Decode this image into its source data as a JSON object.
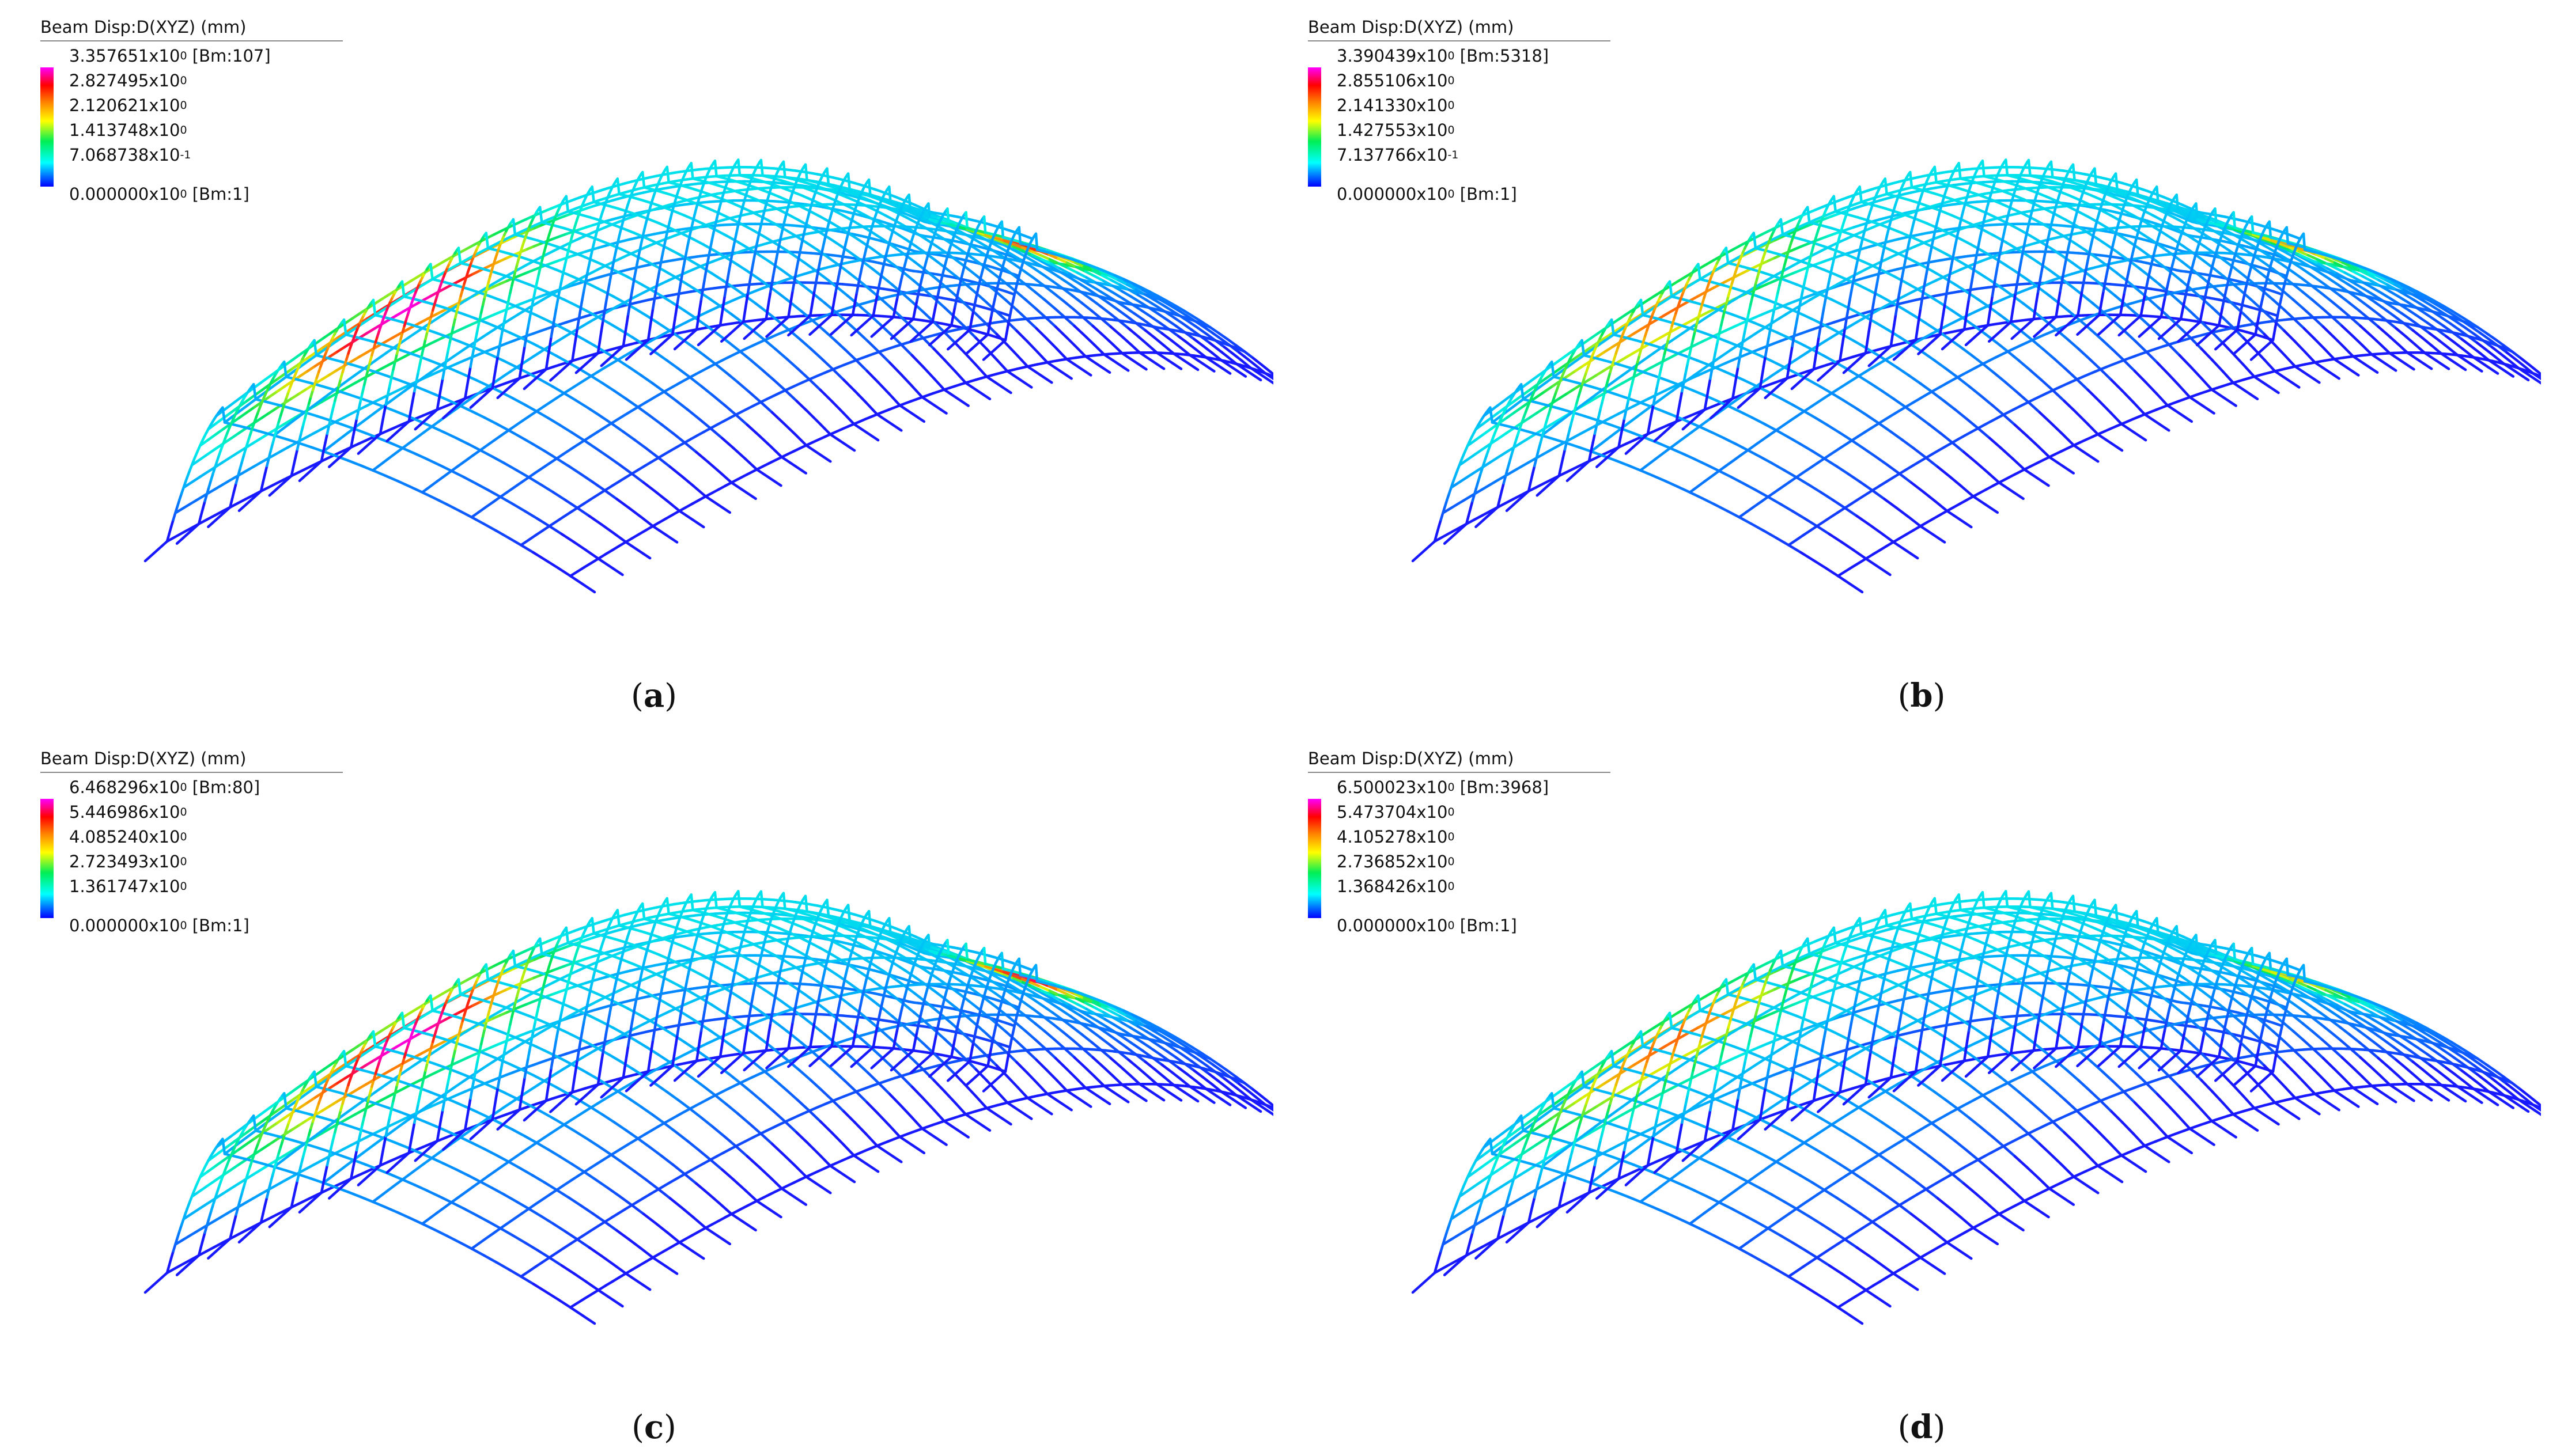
{
  "panels": [
    {
      "id": "a",
      "legend_title": "Beam Disp:D(XYZ)  (mm)",
      "legend": [
        {
          "mantissa": "3.357651",
          "exp": "0",
          "tag": " [Bm:107]"
        },
        {
          "mantissa": "2.827495",
          "exp": "0",
          "tag": ""
        },
        {
          "mantissa": "2.120621",
          "exp": "0",
          "tag": ""
        },
        {
          "mantissa": "1.413748",
          "exp": "0",
          "tag": ""
        },
        {
          "mantissa": "7.068738",
          "exp": "-1",
          "tag": ""
        },
        {
          "mantissa": "0.000000",
          "exp": "0",
          "tag": " [Bm:1]"
        }
      ],
      "caption_letter": "a",
      "hotspot1": 1.0,
      "hotspot2": 0.9
    },
    {
      "id": "b",
      "legend_title": "Beam Disp:D(XYZ)  (mm)",
      "legend": [
        {
          "mantissa": "3.390439",
          "exp": "0",
          "tag": " [Bm:5318]"
        },
        {
          "mantissa": "2.855106",
          "exp": "0",
          "tag": ""
        },
        {
          "mantissa": "2.141330",
          "exp": "0",
          "tag": ""
        },
        {
          "mantissa": "1.427553",
          "exp": "0",
          "tag": ""
        },
        {
          "mantissa": "7.137766",
          "exp": "-1",
          "tag": ""
        },
        {
          "mantissa": "0.000000",
          "exp": "0",
          "tag": " [Bm:1]"
        }
      ],
      "caption_letter": "b",
      "hotspot1": 0.85,
      "hotspot2": 0.8
    },
    {
      "id": "c",
      "legend_title": "Beam Disp:D(XYZ)  (mm)",
      "legend": [
        {
          "mantissa": "6.468296",
          "exp": "0",
          "tag": " [Bm:80]"
        },
        {
          "mantissa": "5.446986",
          "exp": "0",
          "tag": ""
        },
        {
          "mantissa": "4.085240",
          "exp": "0",
          "tag": ""
        },
        {
          "mantissa": "2.723493",
          "exp": "0",
          "tag": ""
        },
        {
          "mantissa": "1.361747",
          "exp": "0",
          "tag": ""
        },
        {
          "mantissa": "0.000000",
          "exp": "0",
          "tag": " [Bm:1]"
        }
      ],
      "caption_letter": "c",
      "hotspot1": 1.0,
      "hotspot2": 0.95
    },
    {
      "id": "d",
      "legend_title": "Beam Disp:D(XYZ)  (mm)",
      "legend": [
        {
          "mantissa": "6.500023",
          "exp": "0",
          "tag": " [Bm:3968]"
        },
        {
          "mantissa": "5.473704",
          "exp": "0",
          "tag": ""
        },
        {
          "mantissa": "4.105278",
          "exp": "0",
          "tag": ""
        },
        {
          "mantissa": "2.736852",
          "exp": "0",
          "tag": ""
        },
        {
          "mantissa": "1.368426",
          "exp": "0",
          "tag": ""
        },
        {
          "mantissa": "0.000000",
          "exp": "0",
          "tag": " [Bm:1]"
        }
      ],
      "caption_letter": "d",
      "hotspot1": 0.85,
      "hotspot2": 0.75
    }
  ],
  "caption_open": "(",
  "caption_close": ")",
  "colors": {
    "low": "#1a1aff",
    "high": "#ff00ff"
  }
}
